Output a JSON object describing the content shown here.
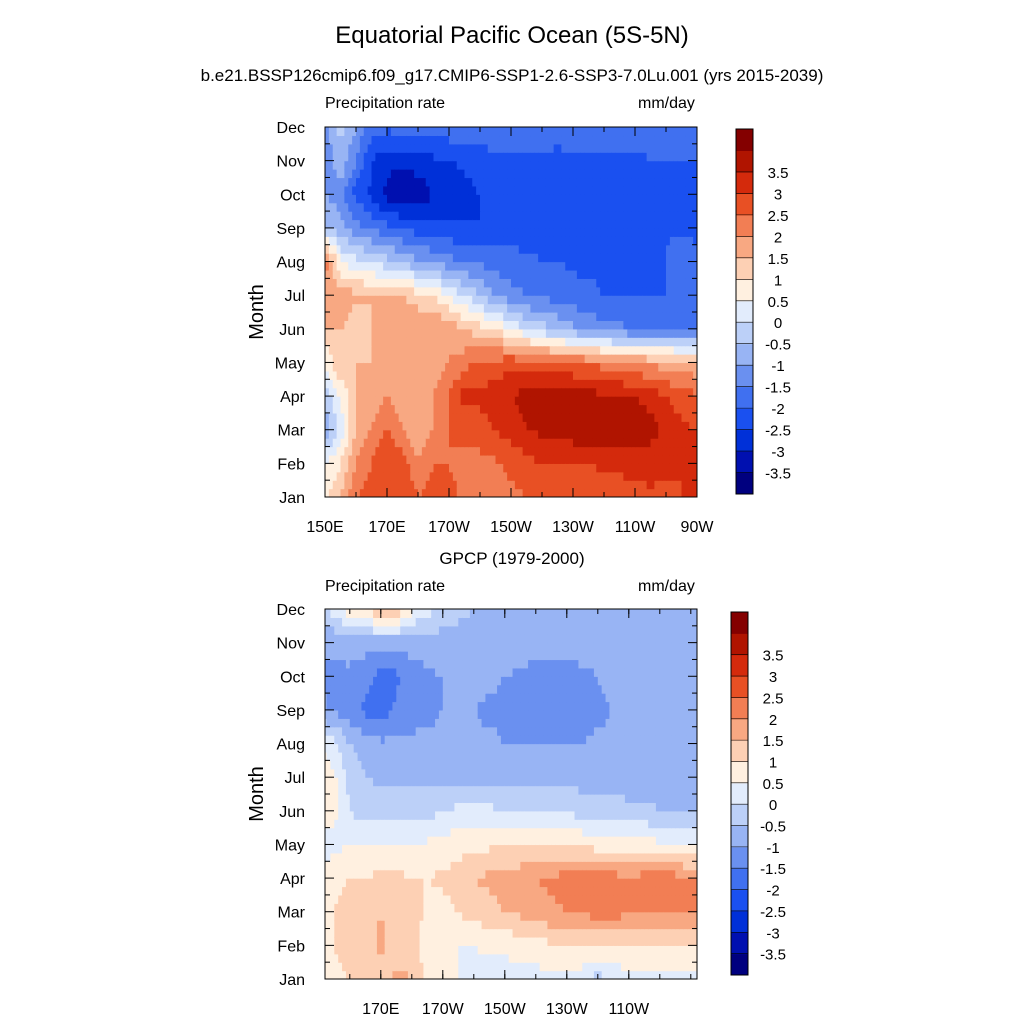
{
  "title": "Equatorial Pacific Ocean (5S-5N)",
  "subtitle": "b.e21.BSSP126cmip6.f09_g17.CMIP6-SSP1-2.6-SSP3-7.0Lu.001 (yrs 2015-2039)",
  "colors": [
    "#00007f",
    "#0010b0",
    "#0030d8",
    "#1a50f0",
    "#4070f0",
    "#6a90f0",
    "#98b4f4",
    "#bcd0f8",
    "#e2ecfc",
    "#fff0e0",
    "#fdd0b4",
    "#f8a882",
    "#f27e54",
    "#e85024",
    "#d42a0c",
    "#b01400",
    "#840000"
  ],
  "chart_data": [
    {
      "type": "heatmap",
      "title": "",
      "subtitle": "",
      "left_label": "Precipitation rate",
      "right_label": "mm/day",
      "ylabel": "Month",
      "y_ticks": [
        "Jan",
        "Feb",
        "Mar",
        "Apr",
        "May",
        "Jun",
        "Jul",
        "Aug",
        "Sep",
        "Oct",
        "Nov",
        "Dec"
      ],
      "x_ticks": [
        "150E",
        "170E",
        "170W",
        "150W",
        "130W",
        "110W",
        "90W"
      ],
      "x_range": [
        150,
        270
      ],
      "levels": [
        "-3.5",
        "-3",
        "-2.5",
        "-2",
        "-1.5",
        "-1",
        "-0.5",
        "0",
        "0.5",
        "1",
        "1.5",
        "2",
        "2.5",
        "3",
        "3.5"
      ],
      "longitudes": [
        150,
        155,
        160,
        165,
        170,
        175,
        180,
        185,
        190,
        195,
        200,
        205,
        210,
        215,
        220,
        225,
        230,
        235,
        240,
        245,
        250,
        255,
        260,
        265,
        270
      ],
      "values": [
        [
          0.8,
          1.5,
          2.5,
          2.8,
          3.0,
          3.0,
          2.5,
          2.8,
          2.6,
          2.4,
          2.2,
          2.3,
          2.4,
          2.5,
          2.5,
          2.6,
          2.6,
          2.7,
          2.7,
          2.8,
          2.8,
          2.9,
          2.9,
          3.0,
          3.0
        ],
        [
          0.5,
          1.0,
          2.0,
          2.5,
          3.0,
          2.8,
          2.0,
          2.5,
          2.5,
          2.4,
          2.3,
          2.4,
          2.6,
          2.8,
          3.0,
          3.0,
          3.0,
          3.0,
          3.1,
          3.1,
          3.2,
          3.2,
          3.1,
          3.0,
          3.0
        ],
        [
          -0.8,
          0.2,
          1.5,
          2.0,
          2.5,
          2.0,
          1.5,
          2.0,
          2.5,
          2.6,
          2.8,
          3.0,
          3.2,
          3.5,
          3.6,
          3.7,
          3.8,
          3.8,
          3.8,
          3.8,
          3.9,
          3.7,
          3.3,
          3.1,
          3.0
        ],
        [
          -0.5,
          0.5,
          1.5,
          1.8,
          2.0,
          1.8,
          1.5,
          2.0,
          2.5,
          3.2,
          3.1,
          3.3,
          3.5,
          3.7,
          3.8,
          3.9,
          3.8,
          3.7,
          3.6,
          3.5,
          3.5,
          3.3,
          3.0,
          2.8,
          2.6
        ],
        [
          0.5,
          1.5,
          1.5,
          1.5,
          1.6,
          1.5,
          1.5,
          1.8,
          2.0,
          2.3,
          2.6,
          2.7,
          2.8,
          2.8,
          2.7,
          2.6,
          2.5,
          2.4,
          2.3,
          2.2,
          2.0,
          1.9,
          1.8,
          1.7,
          1.6
        ],
        [
          1.5,
          1.5,
          1.2,
          1.5,
          1.5,
          2.0,
          2.0,
          2.0,
          1.8,
          1.5,
          1.2,
          1.0,
          0.5,
          0.0,
          -0.3,
          -0.6,
          -0.9,
          -1.1,
          -1.3,
          -1.4,
          -1.5,
          -1.6,
          -1.6,
          -1.6,
          -1.6
        ],
        [
          1.5,
          1.8,
          1.6,
          1.5,
          1.5,
          1.5,
          1.2,
          1.0,
          0.5,
          0.0,
          -0.5,
          -1.0,
          -1.3,
          -1.5,
          -1.6,
          -1.7,
          -1.8,
          -1.9,
          -2.0,
          -2.0,
          -2.0,
          -2.0,
          -2.0,
          -1.9,
          -1.8
        ],
        [
          2.5,
          0.5,
          0.2,
          0.0,
          -0.3,
          -0.6,
          -0.9,
          -1.1,
          -1.3,
          -1.5,
          -1.6,
          -1.7,
          -1.8,
          -1.9,
          -2.0,
          -2.0,
          -2.1,
          -2.1,
          -2.1,
          -2.1,
          -2.1,
          -2.1,
          -2.0,
          -1.5,
          -1.8
        ],
        [
          -0.5,
          -0.8,
          -1.3,
          -1.6,
          -1.8,
          -2.0,
          -2.2,
          -2.3,
          -2.4,
          -2.4,
          -2.5,
          -2.4,
          -2.3,
          -2.2,
          -2.2,
          -2.2,
          -2.2,
          -2.2,
          -2.2,
          -2.2,
          -2.2,
          -2.2,
          -2.1,
          -2.1,
          -2.2
        ],
        [
          -1.0,
          -1.3,
          -2.2,
          -2.6,
          -3.2,
          -3.6,
          -3.4,
          -3.0,
          -2.9,
          -2.7,
          -2.5,
          -2.3,
          -2.2,
          -2.2,
          -2.2,
          -2.2,
          -2.2,
          -2.2,
          -2.2,
          -2.2,
          -2.2,
          -2.2,
          -2.2,
          -2.2,
          -2.2
        ],
        [
          -1.5,
          -0.6,
          -1.5,
          -2.5,
          -2.8,
          -2.8,
          -2.7,
          -2.6,
          -2.5,
          -2.4,
          -2.3,
          -2.2,
          -2.2,
          -2.2,
          -2.2,
          -2.2,
          -2.1,
          -2.1,
          -2.1,
          -2.1,
          -2.1,
          -2.0,
          -2.0,
          -2.0,
          -2.0
        ],
        [
          -1.2,
          -0.3,
          -1.0,
          -1.8,
          -1.9,
          -1.8,
          -1.8,
          -1.8,
          -1.7,
          -1.7,
          -1.6,
          -1.6,
          -1.6,
          -1.6,
          -1.6,
          -1.7,
          -1.7,
          -1.7,
          -1.8,
          -1.8,
          -1.8,
          -1.8,
          -1.8,
          -1.8,
          -1.8
        ]
      ]
    },
    {
      "type": "heatmap",
      "title": "GPCP (1979-2000)",
      "subtitle": "",
      "left_label": "Precipitation rate",
      "right_label": "mm/day",
      "ylabel": "Month",
      "y_ticks": [
        "Jan",
        "Feb",
        "Mar",
        "Apr",
        "May",
        "Jun",
        "Jul",
        "Aug",
        "Sep",
        "Oct",
        "Nov",
        "Dec"
      ],
      "x_ticks": [
        "170E",
        "170W",
        "150W",
        "130W",
        "110W"
      ],
      "x_range": [
        152,
        272
      ],
      "levels": [
        "-3.5",
        "-3",
        "-2.5",
        "-2",
        "-1.5",
        "-1",
        "-0.5",
        "0",
        "0.5",
        "1",
        "1.5",
        "2",
        "2.5",
        "3",
        "3.5"
      ],
      "longitudes": [
        150,
        155,
        160,
        165,
        170,
        175,
        180,
        185,
        190,
        195,
        200,
        205,
        210,
        215,
        220,
        225,
        230,
        235,
        240,
        245,
        250,
        255,
        260,
        265,
        270
      ],
      "values": [
        [
          0.7,
          0.8,
          1.0,
          1.2,
          1.3,
          1.6,
          1.5,
          0.8,
          0.5,
          0.5,
          0.4,
          0.3,
          0.3,
          0.3,
          0.3,
          0.3,
          0.3,
          0.3,
          -0.2,
          0.2,
          0.3,
          0.3,
          0.3,
          0.3,
          0.3
        ],
        [
          0.8,
          1.0,
          1.5,
          1.2,
          1.6,
          1.3,
          1.2,
          0.8,
          0.5,
          0.5,
          0.5,
          0.6,
          0.6,
          0.7,
          0.8,
          0.9,
          0.9,
          0.9,
          0.9,
          0.9,
          0.9,
          0.9,
          0.9,
          0.9,
          0.9
        ],
        [
          0.8,
          1.0,
          1.2,
          1.4,
          1.5,
          1.4,
          1.2,
          0.9,
          0.8,
          1.0,
          1.2,
          1.3,
          1.5,
          1.6,
          1.8,
          1.9,
          2.0,
          2.1,
          2.2,
          2.2,
          2.1,
          2.1,
          2.1,
          2.1,
          2.0
        ],
        [
          0.6,
          0.8,
          1.0,
          1.0,
          1.1,
          1.1,
          1.0,
          1.0,
          1.1,
          1.2,
          1.5,
          1.6,
          1.7,
          1.8,
          2.0,
          2.1,
          2.2,
          2.3,
          2.3,
          2.2,
          2.1,
          2.2,
          2.3,
          2.2,
          2.0
        ],
        [
          0.3,
          0.4,
          0.5,
          0.5,
          0.6,
          0.6,
          0.5,
          0.6,
          0.7,
          0.8,
          0.9,
          0.9,
          1.0,
          1.0,
          1.0,
          1.0,
          1.0,
          0.9,
          0.8,
          0.8,
          0.8,
          0.7,
          0.6,
          0.5,
          0.4
        ],
        [
          0.6,
          0.6,
          0.0,
          -0.2,
          -0.2,
          -0.3,
          -0.3,
          -0.2,
          0.0,
          0.1,
          0.1,
          0.1,
          0.0,
          0.0,
          0.0,
          -0.1,
          -0.1,
          -0.2,
          -0.2,
          -0.3,
          -0.4,
          -0.4,
          -0.5,
          -0.5,
          -0.5
        ],
        [
          0.8,
          0.6,
          -0.2,
          -0.5,
          -0.6,
          -0.6,
          -0.6,
          -0.6,
          -0.6,
          -0.6,
          -0.6,
          -0.6,
          -0.6,
          -0.7,
          -0.7,
          -0.7,
          -0.7,
          -0.7,
          -0.7,
          -0.7,
          -0.7,
          -0.7,
          -0.7,
          -0.7,
          -0.7
        ],
        [
          0.6,
          0.2,
          -0.5,
          -0.8,
          -0.9,
          -0.9,
          -0.9,
          -0.9,
          -0.9,
          -0.9,
          -0.9,
          -0.9,
          -1.0,
          -1.0,
          -1.0,
          -1.0,
          -1.0,
          -1.0,
          -0.9,
          -0.9,
          -0.9,
          -0.9,
          -0.9,
          -0.9,
          -0.9
        ],
        [
          -0.9,
          -1.1,
          -1.3,
          -1.6,
          -1.8,
          -1.4,
          -1.2,
          -1.1,
          -1.0,
          -1.0,
          -1.0,
          -1.1,
          -1.1,
          -1.2,
          -1.2,
          -1.2,
          -1.2,
          -1.2,
          -1.1,
          -1.0,
          -0.9,
          -1.0,
          -1.0,
          -1.0,
          -1.0
        ],
        [
          -1.0,
          -1.1,
          -1.1,
          -1.3,
          -1.7,
          -1.6,
          -1.2,
          -1.1,
          -1.0,
          -0.9,
          -0.8,
          -0.9,
          -1.0,
          -1.1,
          -1.2,
          -1.2,
          -1.2,
          -1.1,
          -1.0,
          -0.9,
          -0.8,
          -0.9,
          -1.0,
          -1.0,
          -1.0
        ],
        [
          -1.0,
          -0.9,
          -0.8,
          -0.8,
          -0.8,
          -0.8,
          -0.8,
          -0.8,
          -0.7,
          -0.7,
          -0.7,
          -0.7,
          -0.7,
          -0.7,
          -0.8,
          -0.8,
          -0.8,
          -0.8,
          -0.8,
          -0.8,
          -0.8,
          -0.8,
          -0.8,
          -0.8,
          -0.8
        ],
        [
          -0.3,
          0.2,
          0.8,
          1.0,
          1.6,
          1.5,
          0.6,
          0.2,
          -0.2,
          -0.4,
          -0.5,
          -0.6,
          -0.6,
          -0.6,
          -0.6,
          -0.6,
          -0.6,
          -0.6,
          -0.6,
          -0.6,
          -0.6,
          -0.6,
          -0.6,
          -0.6,
          -0.6
        ]
      ]
    }
  ]
}
